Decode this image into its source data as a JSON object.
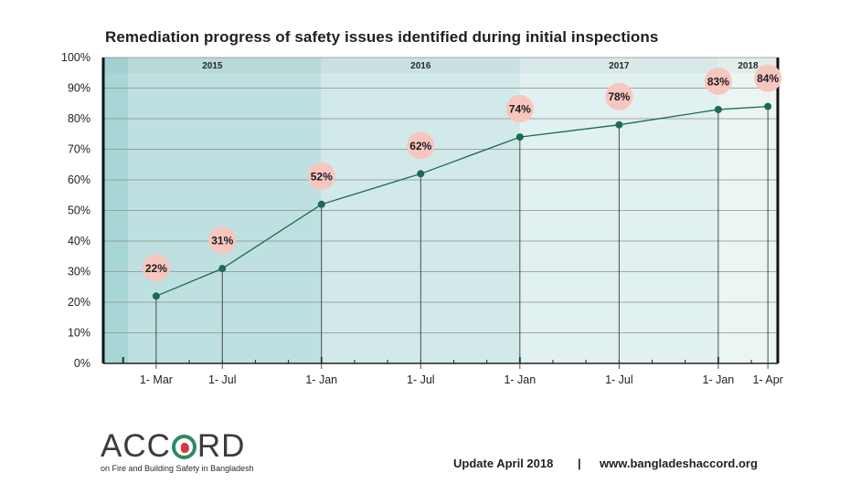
{
  "title": "Remediation progress of safety issues identified during initial inspections",
  "footer": {
    "update": "Update April 2018",
    "separator": "|",
    "url": "www.bangladeshaccord.org"
  },
  "logo": {
    "word_part1": "ACC",
    "word_part2": "RD",
    "tagline": "on Fire and Building Safety in Bangladesh"
  },
  "colors": {
    "line": "#1a6b52",
    "bubble": "#f7c6bf",
    "band_2015": "#bfe0e0",
    "band_2015_edge": "#a8d6d6",
    "band_2016": "#d2e9e9",
    "band_2017": "#e1f0f0",
    "band_2018": "#eaf5f4"
  },
  "chart_data": {
    "type": "line",
    "title": "Remediation progress of safety issues identified during initial inspections",
    "x_unit": "months since 1 Jan 2015",
    "xlim": [
      -1.2,
      39.6
    ],
    "ylim": [
      0,
      100
    ],
    "y_ticks": [
      0,
      10,
      20,
      30,
      40,
      50,
      60,
      70,
      80,
      90,
      100
    ],
    "y_tick_labels": [
      "0%",
      "10%",
      "20%",
      "30%",
      "40%",
      "50%",
      "60%",
      "70%",
      "80%",
      "90%",
      "100%"
    ],
    "grid": true,
    "year_bands": [
      {
        "label": "2015",
        "start": -1.2,
        "end": 12
      },
      {
        "label": "2016",
        "start": 12,
        "end": 24
      },
      {
        "label": "2017",
        "start": 24,
        "end": 36
      },
      {
        "label": "2018",
        "start": 36,
        "end": 39.6
      }
    ],
    "x": [
      2,
      6,
      12,
      18,
      24,
      30,
      36,
      39
    ],
    "x_labels": [
      "1- Mar",
      "1- Jul",
      "1- Jan",
      "1- Jul",
      "1- Jan",
      "1- Jul",
      "1- Jan",
      "1- Apr"
    ],
    "values": [
      22,
      31,
      52,
      62,
      74,
      78,
      83,
      84
    ],
    "data_labels": [
      "22%",
      "31%",
      "52%",
      "62%",
      "74%",
      "78%",
      "83%",
      "84%"
    ],
    "minor_tick_months": [
      0,
      2,
      4,
      6,
      8,
      10,
      12,
      14,
      16,
      18,
      20,
      22,
      24,
      26,
      28,
      30,
      32,
      34,
      36,
      38
    ]
  }
}
